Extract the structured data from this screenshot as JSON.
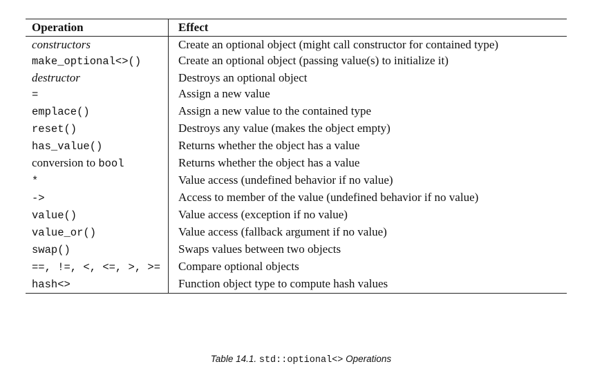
{
  "table": {
    "headers": {
      "operation": "Operation",
      "effect": "Effect"
    },
    "rows": [
      {
        "operation": "constructors",
        "style": "ital",
        "effect": "Create an optional object (might call constructor for contained type)"
      },
      {
        "operation": "make_optional<>()",
        "style": "mono",
        "effect": "Create an optional object (passing value(s) to initialize it)"
      },
      {
        "operation": "destructor",
        "style": "ital",
        "effect": "Destroys an optional object"
      },
      {
        "operation": "=",
        "style": "mono",
        "effect": "Assign a new value"
      },
      {
        "operation": "emplace()",
        "style": "mono",
        "effect": "Assign a new value to the contained type"
      },
      {
        "operation": "reset()",
        "style": "mono",
        "effect": "Destroys any value (makes the object empty)"
      },
      {
        "operation": "has_value()",
        "style": "mono",
        "effect": "Returns whether the object has a value"
      },
      {
        "operation_text": "conversion to ",
        "operation_code": "bool",
        "style": "mixed",
        "effect": "Returns whether the object has a value"
      },
      {
        "operation": "*",
        "style": "mono",
        "effect": "Value access (undefined behavior if no value)"
      },
      {
        "operation": "->",
        "style": "mono",
        "effect": "Access to member of the value (undefined behavior if no value)"
      },
      {
        "operation": "value()",
        "style": "mono",
        "effect": "Value access (exception if no value)"
      },
      {
        "operation": "value_or()",
        "style": "mono",
        "effect": "Value access (fallback argument if no value)"
      },
      {
        "operation": "swap()",
        "style": "mono",
        "effect": "Swaps values between two objects"
      },
      {
        "operation": "==, !=, <, <=, >, >=",
        "style": "mono",
        "effect": "Compare optional objects"
      },
      {
        "operation": "hash<>",
        "style": "mono",
        "effect": "Function object type to compute hash values"
      }
    ]
  },
  "caption": {
    "prefix": "Table 14.1. ",
    "code": "std::optional<>",
    "suffix": " Operations"
  }
}
